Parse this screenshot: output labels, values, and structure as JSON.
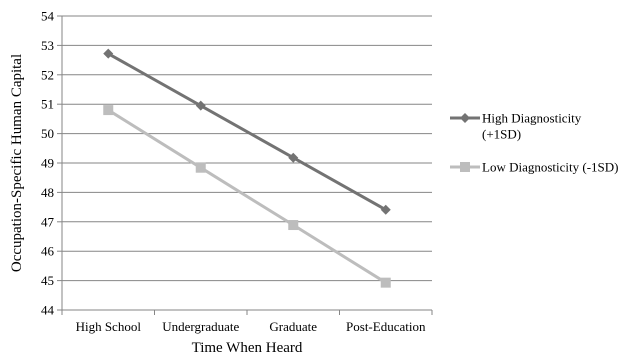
{
  "chart_data": {
    "type": "line",
    "categories": [
      "High School",
      "Undergraduate",
      "Graduate",
      "Post-Education"
    ],
    "series": [
      {
        "name_lines": [
          "High Diagnosticity",
          "(+1SD)"
        ],
        "values": [
          52.72,
          50.95,
          49.18,
          47.41
        ],
        "color": "#737373",
        "marker": "diamond"
      },
      {
        "name_lines": [
          "Low Diagnosticity (-1SD)"
        ],
        "values": [
          50.8,
          48.84,
          46.89,
          44.93
        ],
        "color": "#bdbdbd",
        "marker": "square"
      }
    ],
    "xlabel": "Time When Heard",
    "ylabel": "Occupation-Specific Human Capital",
    "ylim": [
      44,
      54
    ],
    "ytick_step": 1,
    "yticks": [
      "44",
      "45",
      "46",
      "47",
      "48",
      "49",
      "50",
      "51",
      "52",
      "53",
      "54"
    ],
    "grid": true,
    "legend_position": "right",
    "axis_color": "#868686",
    "grid_color": "#868686"
  }
}
